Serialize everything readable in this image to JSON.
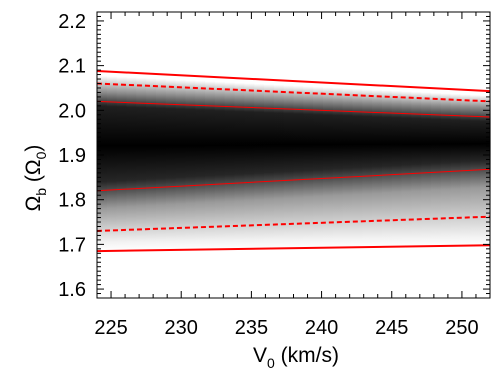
{
  "chart_data": {
    "type": "heatmap",
    "xlabel_main": "V",
    "xlabel_sub": "0",
    "xlabel_rest": " (km/s)",
    "ylabel_main": "Ω",
    "ylabel_sub": "b",
    "ylabel_mid": " (Ω",
    "ylabel_sub2": "0",
    "ylabel_end": ")",
    "xlim": [
      224,
      252
    ],
    "ylim": [
      1.58,
      2.22
    ],
    "x_ticks": [
      225,
      230,
      235,
      240,
      245,
      250
    ],
    "x_tick_labels": [
      "225",
      "230",
      "235",
      "240",
      "245",
      "250"
    ],
    "y_ticks": [
      1.6,
      1.7,
      1.8,
      1.9,
      2.0,
      2.1,
      2.2
    ],
    "y_tick_labels": [
      "1.6",
      "1.7",
      "1.8",
      "1.9",
      "2.0",
      "2.1",
      "2.2"
    ],
    "density": {
      "peak_center": [
        1.92,
        1.925
      ],
      "inner_band_upper": [
        2.02,
        1.985
      ],
      "inner_band_lower": [
        1.82,
        1.868
      ],
      "outer_band_upper": [
        2.088,
        2.043
      ],
      "outer_band_lower": [
        1.685,
        1.698
      ]
    },
    "series": [
      {
        "style": "solid",
        "width": "thick",
        "x": [
          224,
          252
        ],
        "y": [
          2.088,
          2.043
        ]
      },
      {
        "style": "dashed",
        "width": "thick",
        "x": [
          224,
          252
        ],
        "y": [
          2.06,
          2.02
        ]
      },
      {
        "style": "solid",
        "width": "thin",
        "x": [
          224,
          252
        ],
        "y": [
          2.02,
          1.985
        ]
      },
      {
        "style": "solid",
        "width": "thin",
        "x": [
          224,
          252
        ],
        "y": [
          1.82,
          1.868
        ]
      },
      {
        "style": "dashed",
        "width": "thick",
        "x": [
          224,
          252
        ],
        "y": [
          1.73,
          1.762
        ]
      },
      {
        "style": "solid",
        "width": "thick",
        "x": [
          224,
          252
        ],
        "y": [
          1.685,
          1.698
        ]
      }
    ],
    "line_color": "#ff0000",
    "grid": false
  }
}
